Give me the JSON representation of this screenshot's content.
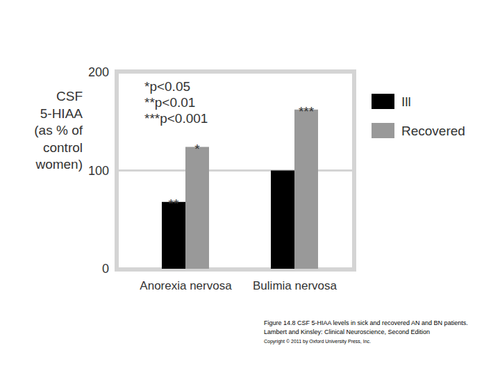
{
  "chart_data": {
    "type": "bar",
    "y_label": [
      "CSF",
      "5-HIAA",
      "(as % of",
      "control",
      "women)"
    ],
    "categories": [
      "Anorexia nervosa",
      "Bulimia nervosa"
    ],
    "series": [
      {
        "name": "Ill",
        "color": "#000000",
        "values": [
          68,
          100
        ]
      },
      {
        "name": "Recovered",
        "color": "#999999",
        "values": [
          124,
          162
        ]
      }
    ],
    "ylim": [
      0,
      200
    ],
    "yticks": [
      0,
      100,
      200
    ],
    "grid": true,
    "legend": "right",
    "significance_key": [
      "*p<0.05",
      "**p<0.01",
      "***p<0.001"
    ],
    "annotations": [
      {
        "text": "**",
        "category": "Anorexia nervosa",
        "series": "Ill"
      },
      {
        "text": "*",
        "category": "Anorexia nervosa",
        "series": "Recovered"
      },
      {
        "text": "***",
        "category": "Bulimia nervosa",
        "series": "Recovered"
      }
    ],
    "caption": [
      "Figure 14.8 CSF 5-HIAA levels in sick and recovered AN and BN patients.",
      "Lambert and Kinsley: Clinical Neuroscience, Second Edition",
      "Copyright © 2011 by Oxford University Press, Inc."
    ]
  }
}
